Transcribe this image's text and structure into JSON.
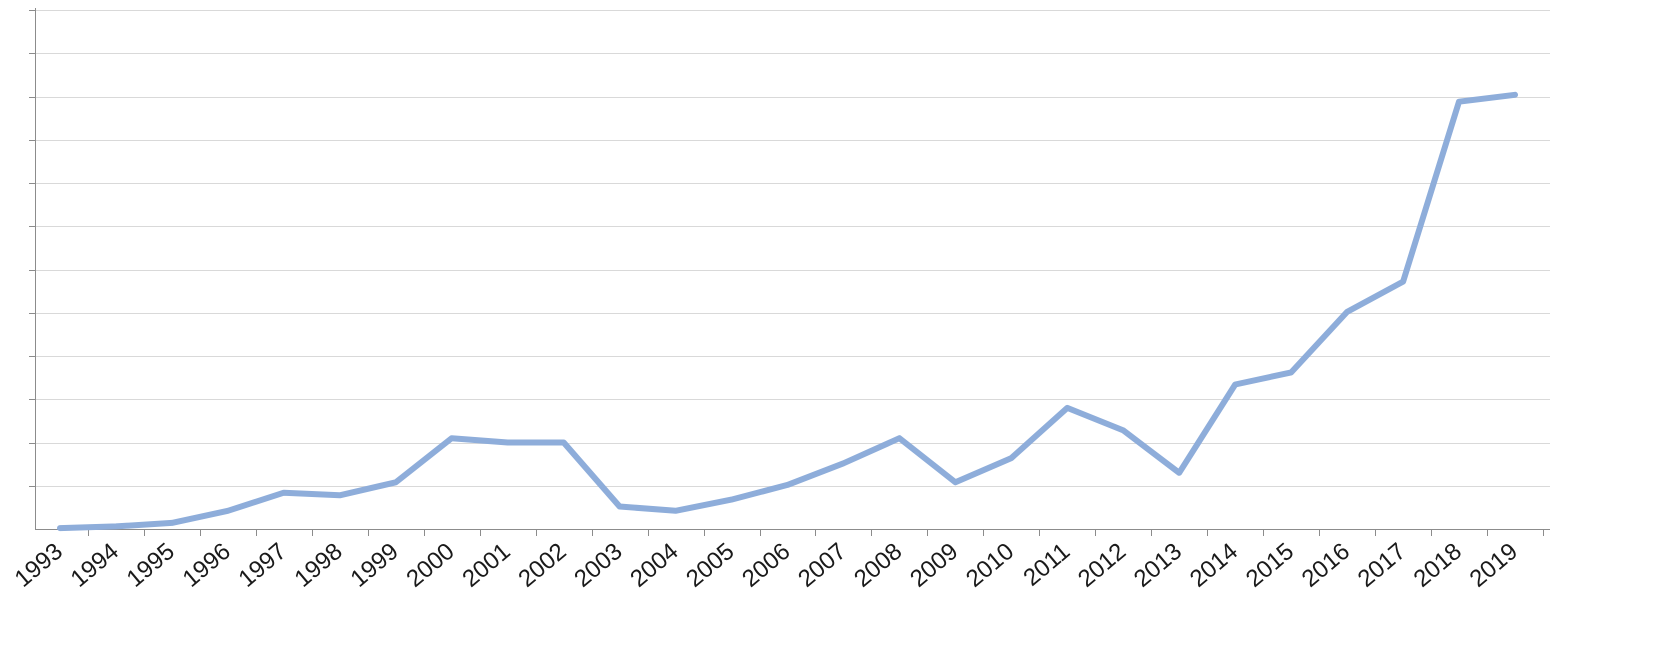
{
  "chart_data": {
    "type": "line",
    "title": "",
    "xlabel": "",
    "ylabel": "",
    "categories": [
      "1993",
      "1994",
      "1995",
      "1996",
      "1997",
      "1998",
      "1999",
      "2000",
      "2001",
      "2002",
      "2003",
      "2004",
      "2005",
      "2006",
      "2007",
      "2008",
      "2009",
      "2010",
      "2011",
      "2012",
      "2013",
      "2014",
      "2015",
      "2016",
      "2017",
      "2018",
      "2019"
    ],
    "series": [
      {
        "values": [
          0.05,
          0.15,
          0.35,
          1.05,
          2.1,
          1.95,
          2.7,
          5.25,
          5.0,
          5.0,
          1.3,
          1.05,
          1.7,
          2.55,
          3.8,
          5.25,
          2.7,
          4.1,
          7.0,
          5.7,
          3.25,
          8.35,
          9.05,
          12.55,
          14.3,
          24.7,
          25.1
        ],
        "color": "#8eadda"
      }
    ],
    "ylim": [
      0,
      30
    ],
    "y_gridlines": 12,
    "grid": true,
    "y_tick_labels_shown": false,
    "legend": "none"
  }
}
